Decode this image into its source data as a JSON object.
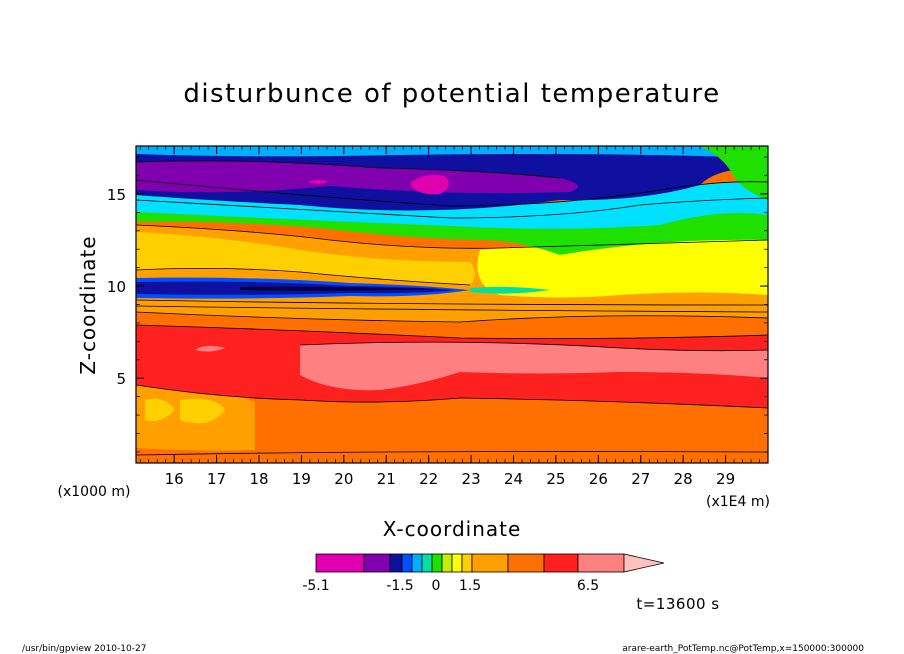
{
  "chart_data": {
    "type": "heatmap",
    "title": "disturbunce of potential temperature",
    "xlabel": "X-coordinate",
    "ylabel": "Z-coordinate",
    "x_unit": "(x1E4 m)",
    "y_unit": "(x1000 m)",
    "xlim": [
      15.1,
      30.0
    ],
    "ylim": [
      0.4,
      17.6
    ],
    "x_ticks": [
      "16",
      "17",
      "18",
      "19",
      "20",
      "21",
      "22",
      "23",
      "24",
      "25",
      "26",
      "27",
      "28",
      "29"
    ],
    "y_ticks": [
      "5",
      "10",
      "15"
    ],
    "colorbar": {
      "tick_labels": [
        "-5.1",
        "-1.5",
        "0",
        "1.5",
        "6.5"
      ],
      "colors": [
        "#e000b0",
        "#8000b0",
        "#1010a0",
        "#0050ff",
        "#00b0ff",
        "#00e0a0",
        "#20e000",
        "#c0f000",
        "#ffff00",
        "#ffd000",
        "#ffa000",
        "#ff7000",
        "#ff2020",
        "#ff8080",
        "#ffc0c0"
      ]
    },
    "layers": [
      {
        "name": "deep orange",
        "color": "#ff7000",
        "z_range": [
          0.4,
          3.0
        ]
      },
      {
        "name": "red",
        "color": "#ff2020",
        "z_range": [
          3.0,
          8.5
        ]
      },
      {
        "name": "light pink",
        "color": "#ff8080",
        "z_range": [
          4.0,
          7.0
        ]
      },
      {
        "name": "orange",
        "color": "#ffa000",
        "z_range": [
          8.5,
          12.0
        ]
      },
      {
        "name": "yellow",
        "color": "#ffff00",
        "z_range": [
          9.0,
          12.0
        ]
      },
      {
        "name": "green",
        "color": "#20e000",
        "z_range": [
          12.5,
          14.0
        ]
      },
      {
        "name": "cyan",
        "color": "#00e0ff",
        "z_range": [
          13.5,
          15.0
        ]
      },
      {
        "name": "navy",
        "color": "#1010a0",
        "z_range": [
          14.5,
          17.0
        ]
      },
      {
        "name": "purple",
        "color": "#8000b0",
        "z_range": [
          15.0,
          17.0
        ]
      },
      {
        "name": "magenta",
        "color": "#e000b0",
        "z_range": [
          15.5,
          16.5
        ]
      }
    ],
    "grid": false,
    "legend": "colorbar bottom-center"
  },
  "annotations": {
    "time": "t=13600 s",
    "footer_left": "/usr/bin/gpview   2010-10-27",
    "footer_right": "arare-earth_PotTemp.nc@PotTemp,x=150000:300000"
  }
}
